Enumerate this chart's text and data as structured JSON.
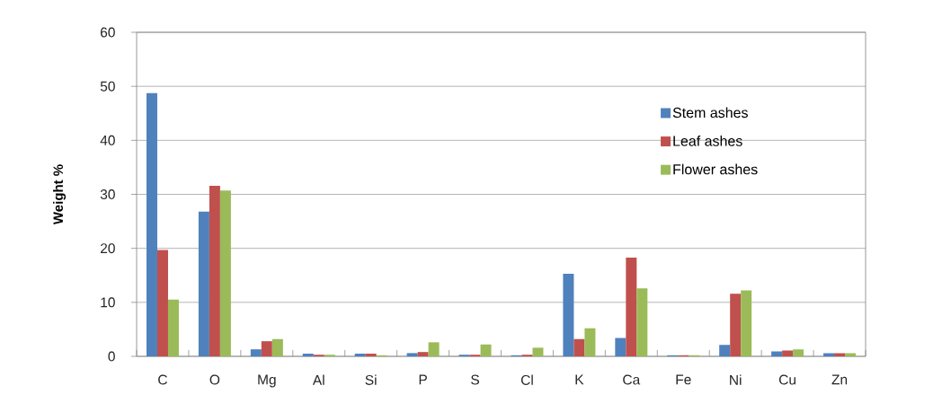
{
  "chart_data": {
    "type": "bar",
    "ylabel": "Weight %",
    "categories": [
      "C",
      "O",
      "Mg",
      "Al",
      "Si",
      "P",
      "S",
      "Cl",
      "K",
      "Ca",
      "Fe",
      "Ni",
      "Cu",
      "Zn"
    ],
    "series": [
      {
        "name": "Stem ashes",
        "color": "#4f81bd",
        "values": [
          48.8,
          26.8,
          1.3,
          0.5,
          0.5,
          0.6,
          0.3,
          0.2,
          15.3,
          3.4,
          0.2,
          2.1,
          0.9,
          0.6
        ]
      },
      {
        "name": "Leaf ashes",
        "color": "#c0504d",
        "values": [
          19.7,
          31.6,
          2.8,
          0.3,
          0.5,
          0.8,
          0.3,
          0.3,
          3.2,
          18.3,
          0.2,
          11.6,
          1.1,
          0.6
        ]
      },
      {
        "name": "Flower ashes",
        "color": "#9bbb59",
        "values": [
          10.5,
          30.7,
          3.2,
          0.3,
          0.2,
          2.6,
          2.2,
          1.6,
          5.2,
          12.6,
          0.2,
          12.2,
          1.3,
          0.6
        ]
      }
    ],
    "ylim": [
      0,
      60
    ],
    "yticks": [
      0,
      10,
      20,
      30,
      40,
      50,
      60
    ],
    "grid": "y",
    "legend": "top right"
  }
}
